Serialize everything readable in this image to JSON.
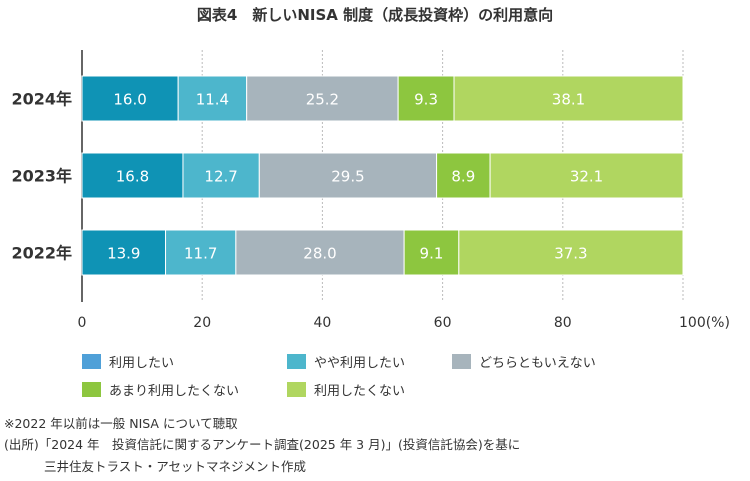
{
  "chart_data": {
    "type": "bar",
    "stacked": true,
    "orientation": "horizontal",
    "title": "図表4　新しいNISA 制度（成長投資枠）の利用意向",
    "categories": [
      "2024年",
      "2023年",
      "2022年"
    ],
    "series": [
      {
        "name": "利用したい",
        "color": "#0f93b5",
        "legend_color": "#4fa0d8",
        "values": [
          16.0,
          16.8,
          13.9
        ]
      },
      {
        "name": "やや利用したい",
        "color": "#4db6cc",
        "legend_color": "#4db6cc",
        "values": [
          11.4,
          12.7,
          11.7
        ]
      },
      {
        "name": "どちらともいえない",
        "color": "#a7b4bc",
        "legend_color": "#a7b4bc",
        "values": [
          25.2,
          29.5,
          28.0
        ]
      },
      {
        "name": "あまり利用したくない",
        "color": "#8dc63f",
        "legend_color": "#8dc63f",
        "values": [
          9.3,
          8.9,
          9.1
        ]
      },
      {
        "name": "利用したくない",
        "color": "#b0d660",
        "legend_color": "#b0d660",
        "values": [
          38.1,
          32.1,
          37.3
        ]
      }
    ],
    "xticks": [
      "0",
      "20",
      "40",
      "60",
      "80",
      "100"
    ],
    "xunit": "(%)",
    "xlim": [
      0,
      100
    ]
  },
  "notes": [
    "※2022 年以前は一般 NISA について聴取",
    "(出所)「2024 年　投資信託に関するアンケート調査(2025 年 3 月)」(投資信託協会)を基に",
    "三井住友トラスト・アセットマネジメント作成"
  ]
}
